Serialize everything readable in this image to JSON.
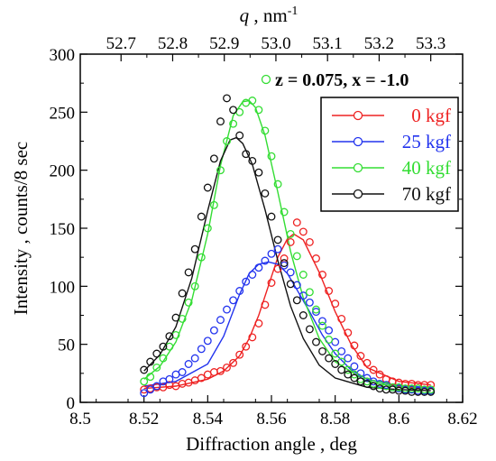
{
  "chart_data": {
    "type": "scatter",
    "title": "",
    "xlabel": "Diffraction angle , deg",
    "ylabel": "Intensity , counts/8 sec",
    "top_axis": {
      "label_symbol": "q",
      "label_rest": " , nm",
      "label_exp": "-1",
      "ticks": [
        52.7,
        52.8,
        52.9,
        53.0,
        53.1,
        53.2,
        53.3
      ],
      "tick_labels": [
        "52.7",
        "52.8",
        "52.9",
        "53.0",
        "53.1",
        "53.2",
        "53.3"
      ],
      "x_positions": [
        8.5128,
        8.529,
        8.5452,
        8.5614,
        8.5776,
        8.5938,
        8.61
      ]
    },
    "xlim": [
      8.5,
      8.62
    ],
    "ylim": [
      0,
      300
    ],
    "x_ticks": [
      8.5,
      8.52,
      8.54,
      8.56,
      8.58,
      8.6,
      8.62
    ],
    "x_tick_labels": [
      "8.5",
      "8.52",
      "8.54",
      "8.56",
      "8.58",
      "8.6",
      "8.62"
    ],
    "y_ticks": [
      0,
      50,
      100,
      150,
      200,
      250,
      300
    ],
    "y_tick_labels": [
      "0",
      "50",
      "100",
      "150",
      "200",
      "250",
      "300"
    ],
    "annotation": "z = 0.075, x = -1.0",
    "annotation_color": "#33dd33",
    "legend_position": "top-right",
    "series": [
      {
        "name": "0 kgf",
        "color": "#ee2222",
        "x": [
          8.52,
          8.522,
          8.524,
          8.526,
          8.528,
          8.53,
          8.532,
          8.534,
          8.536,
          8.538,
          8.54,
          8.542,
          8.544,
          8.546,
          8.548,
          8.55,
          8.552,
          8.554,
          8.556,
          8.558,
          8.56,
          8.562,
          8.564,
          8.566,
          8.568,
          8.57,
          8.572,
          8.574,
          8.576,
          8.578,
          8.58,
          8.582,
          8.584,
          8.586,
          8.588,
          8.59,
          8.592,
          8.594,
          8.596,
          8.598,
          8.6,
          8.602,
          8.604,
          8.606,
          8.608,
          8.61
        ],
        "y": [
          11,
          12,
          13,
          13,
          15,
          14,
          16,
          17,
          19,
          21,
          24,
          26,
          27,
          30,
          34,
          41,
          48,
          56,
          68,
          84,
          103,
          115,
          124,
          138,
          155,
          147,
          138,
          124,
          110,
          96,
          85,
          72,
          60,
          49,
          40,
          34,
          28,
          24,
          20,
          18,
          17,
          16,
          16,
          15,
          15,
          15
        ],
        "fit_x": [
          8.52,
          8.53,
          8.54,
          8.545,
          8.55,
          8.553,
          8.556,
          8.559,
          8.562,
          8.565,
          8.567,
          8.57,
          8.575,
          8.58,
          8.585,
          8.59,
          8.6,
          8.61
        ],
        "fit_y": [
          12,
          14,
          20,
          27,
          40,
          55,
          75,
          100,
          125,
          141,
          145,
          140,
          112,
          78,
          50,
          30,
          18,
          15
        ]
      },
      {
        "name": "25 kgf",
        "color": "#2233ee",
        "x": [
          8.52,
          8.522,
          8.524,
          8.526,
          8.528,
          8.53,
          8.532,
          8.534,
          8.536,
          8.538,
          8.54,
          8.542,
          8.544,
          8.546,
          8.548,
          8.55,
          8.552,
          8.554,
          8.556,
          8.558,
          8.56,
          8.562,
          8.564,
          8.566,
          8.568,
          8.57,
          8.572,
          8.574,
          8.576,
          8.578,
          8.58,
          8.582,
          8.584,
          8.586,
          8.588,
          8.59,
          8.592,
          8.594,
          8.596,
          8.598,
          8.6,
          8.602,
          8.604,
          8.606,
          8.608,
          8.61
        ],
        "y": [
          8,
          11,
          14,
          18,
          20,
          24,
          26,
          33,
          38,
          46,
          53,
          62,
          71,
          80,
          88,
          96,
          104,
          110,
          116,
          122,
          128,
          132,
          118,
          112,
          101,
          92,
          86,
          78,
          70,
          62,
          52,
          44,
          38,
          31,
          25,
          21,
          18,
          16,
          15,
          13,
          12,
          11,
          11,
          10,
          10,
          10
        ],
        "fit_x": [
          8.52,
          8.53,
          8.54,
          8.545,
          8.55,
          8.553,
          8.556,
          8.559,
          8.562,
          8.565,
          8.568,
          8.572,
          8.576,
          8.58,
          8.585,
          8.59,
          8.6,
          8.61
        ],
        "fit_y": [
          14,
          18,
          33,
          57,
          93,
          111,
          119,
          121,
          119,
          111,
          97,
          78,
          58,
          42,
          28,
          20,
          14,
          13
        ]
      },
      {
        "name": "40 kgf",
        "color": "#33dd33",
        "x": [
          8.52,
          8.522,
          8.524,
          8.526,
          8.528,
          8.53,
          8.532,
          8.534,
          8.536,
          8.538,
          8.54,
          8.542,
          8.544,
          8.546,
          8.548,
          8.55,
          8.552,
          8.554,
          8.556,
          8.558,
          8.56,
          8.562,
          8.564,
          8.566,
          8.568,
          8.57,
          8.572,
          8.574,
          8.576,
          8.578,
          8.58,
          8.582,
          8.584,
          8.586,
          8.588,
          8.59,
          8.592,
          8.594,
          8.596,
          8.598,
          8.6,
          8.602,
          8.604,
          8.606,
          8.608,
          8.61
        ],
        "y": [
          18,
          22,
          30,
          38,
          48,
          58,
          72,
          86,
          100,
          125,
          150,
          170,
          200,
          225,
          240,
          250,
          258,
          260,
          252,
          234,
          212,
          188,
          164,
          145,
          126,
          110,
          95,
          80,
          66,
          54,
          42,
          35,
          28,
          24,
          20,
          18,
          16,
          15,
          14,
          13,
          13,
          12,
          12,
          12,
          11,
          11
        ],
        "fit_x": [
          8.52,
          8.525,
          8.53,
          8.535,
          8.54,
          8.544,
          8.548,
          8.551,
          8.553,
          8.555,
          8.558,
          8.562,
          8.566,
          8.57,
          8.575,
          8.58,
          8.59,
          8.6,
          8.61
        ],
        "fit_y": [
          20,
          31,
          52,
          88,
          145,
          204,
          247,
          259,
          260,
          254,
          230,
          181,
          130,
          90,
          55,
          35,
          18,
          13,
          12
        ]
      },
      {
        "name": "70 kgf",
        "color": "#111111",
        "x": [
          8.52,
          8.522,
          8.524,
          8.526,
          8.528,
          8.53,
          8.532,
          8.534,
          8.536,
          8.538,
          8.54,
          8.542,
          8.544,
          8.546,
          8.548,
          8.55,
          8.552,
          8.554,
          8.556,
          8.558,
          8.56,
          8.562,
          8.564,
          8.566,
          8.568,
          8.57,
          8.572,
          8.574,
          8.576,
          8.578,
          8.58,
          8.582,
          8.584,
          8.586,
          8.588,
          8.59,
          8.592,
          8.594,
          8.596,
          8.598,
          8.6,
          8.602,
          8.604,
          8.606,
          8.608,
          8.61
        ],
        "y": [
          28,
          35,
          42,
          48,
          57,
          73,
          94,
          112,
          132,
          160,
          185,
          210,
          242,
          262,
          252,
          230,
          214,
          208,
          198,
          180,
          160,
          140,
          120,
          102,
          88,
          75,
          63,
          52,
          44,
          38,
          33,
          28,
          24,
          21,
          18,
          16,
          14,
          12,
          11,
          11,
          10,
          10,
          9,
          9,
          9,
          9
        ],
        "fit_x": [
          8.52,
          8.525,
          8.53,
          8.535,
          8.54,
          8.544,
          8.547,
          8.549,
          8.551,
          8.554,
          8.558,
          8.562,
          8.566,
          8.57,
          8.575,
          8.58,
          8.59,
          8.6,
          8.61
        ],
        "fit_y": [
          27,
          41,
          65,
          107,
          165,
          208,
          226,
          228,
          223,
          205,
          166,
          122,
          83,
          55,
          32,
          21,
          13,
          11,
          10
        ]
      }
    ]
  }
}
